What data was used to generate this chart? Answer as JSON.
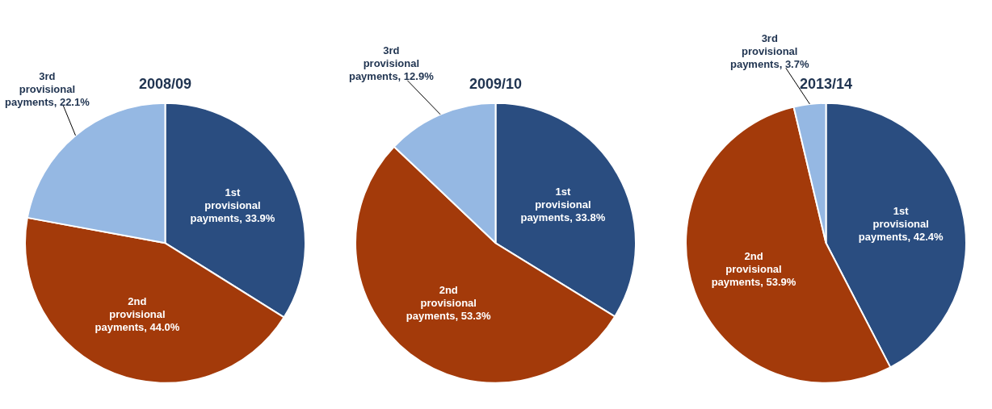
{
  "chart_data": [
    {
      "type": "pie",
      "title": "2008/09",
      "categories": [
        "1st provisional payments",
        "2nd provisional payments",
        "3rd provisional payments"
      ],
      "values": [
        33.9,
        44.0,
        22.1
      ],
      "value_labels": [
        "33.9%",
        "44.0%",
        "22.1%"
      ],
      "colors": [
        "#2a4d80",
        "#a33a0a",
        "#95b8e3"
      ],
      "legend": false
    },
    {
      "type": "pie",
      "title": "2009/10",
      "categories": [
        "1st provisional payments",
        "2nd provisional payments",
        "3rd provisional payments"
      ],
      "values": [
        33.8,
        53.3,
        12.9
      ],
      "value_labels": [
        "33.8%",
        "53.3%",
        "12.9%"
      ],
      "colors": [
        "#2a4d80",
        "#a33a0a",
        "#95b8e3"
      ],
      "legend": false
    },
    {
      "type": "pie",
      "title": "2013/14",
      "categories": [
        "1st provisional payments",
        "2nd provisional payments",
        "3rd provisional payments"
      ],
      "values": [
        42.4,
        53.9,
        3.7
      ],
      "value_labels": [
        "42.4%",
        "53.9%",
        "3.7%"
      ],
      "colors": [
        "#2a4d80",
        "#a33a0a",
        "#95b8e3"
      ],
      "legend": false
    }
  ]
}
